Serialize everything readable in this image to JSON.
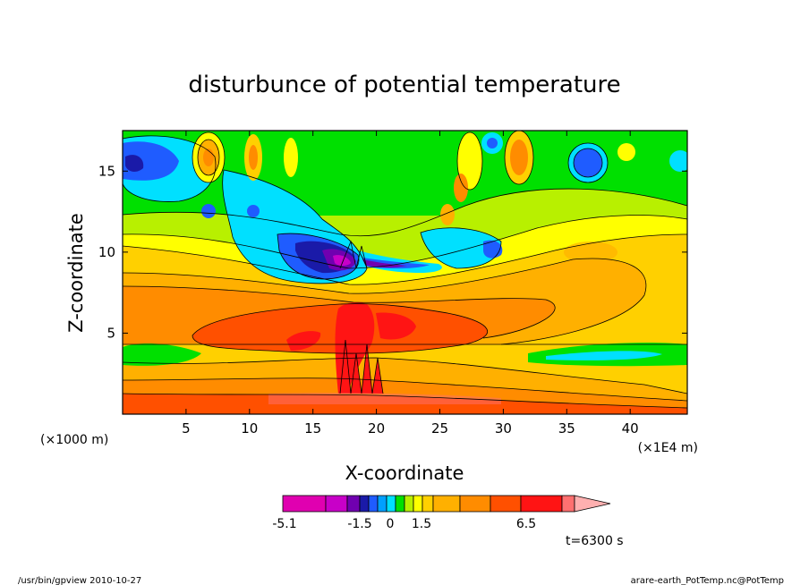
{
  "chart_data": {
    "type": "heatmap",
    "title": "disturbunce of potential temperature",
    "xlabel": "X-coordinate",
    "ylabel": "Z-coordinate",
    "x_unit": "(×1E4 m)",
    "y_unit": "(×1000 m)",
    "xlim": [
      0,
      44.5
    ],
    "ylim": [
      0,
      17.5
    ],
    "x_ticks": [
      5,
      10,
      15,
      20,
      25,
      30,
      35,
      40
    ],
    "y_ticks": [
      5,
      10,
      15
    ],
    "colorbar": {
      "colors": [
        "#e000b0",
        "#c800c8",
        "#7000b0",
        "#1a1aa8",
        "#1f5cff",
        "#00a0ff",
        "#00e0ff",
        "#00e000",
        "#b8f000",
        "#ffff00",
        "#ffd000",
        "#ffb000",
        "#ff8c00",
        "#ff5000",
        "#ff1414",
        "#ff7070",
        "#ffb0b0"
      ],
      "labels": [
        "-5.1",
        "-1.5",
        "0",
        "1.5",
        "6.5"
      ]
    },
    "annotation": "t=6300 s"
  },
  "footer": {
    "left": "/usr/bin/gpview   2010-10-27",
    "right": "arare-earth_PotTemp.nc@PotTemp"
  }
}
